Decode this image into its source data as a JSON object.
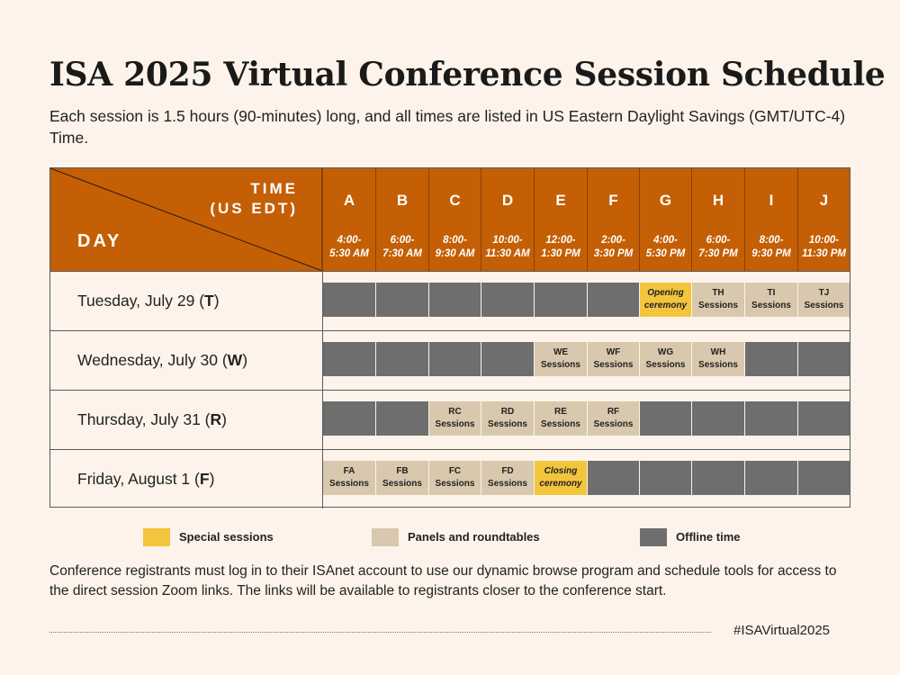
{
  "title": "ISA 2025 Virtual Conference Session Schedule",
  "subtitle": "Each session is 1.5 hours (90-minutes) long, and all times are listed in US Eastern Daylight Savings (GMT/UTC-4) Time.",
  "header": {
    "time_label_1": "TIME",
    "time_label_2": "(US EDT)",
    "day_label": "DAY"
  },
  "columns": [
    {
      "letter": "A",
      "time1": "4:00-",
      "time2": "5:30 AM"
    },
    {
      "letter": "B",
      "time1": "6:00-",
      "time2": "7:30 AM"
    },
    {
      "letter": "C",
      "time1": "8:00-",
      "time2": "9:30 AM"
    },
    {
      "letter": "D",
      "time1": "10:00-",
      "time2": "11:30 AM"
    },
    {
      "letter": "E",
      "time1": "12:00-",
      "time2": "1:30 PM"
    },
    {
      "letter": "F",
      "time1": "2:00-",
      "time2": "3:30 PM"
    },
    {
      "letter": "G",
      "time1": "4:00-",
      "time2": "5:30 PM"
    },
    {
      "letter": "H",
      "time1": "6:00-",
      "time2": "7:30 PM"
    },
    {
      "letter": "I",
      "time1": "8:00-",
      "time2": "9:30 PM"
    },
    {
      "letter": "J",
      "time1": "10:00-",
      "time2": "11:30 PM"
    }
  ],
  "rows": [
    {
      "day": "Tuesday, July 29 (",
      "code": "T",
      "close": ")",
      "cells": [
        {
          "type": "off",
          "l1": "",
          "l2": ""
        },
        {
          "type": "off",
          "l1": "",
          "l2": ""
        },
        {
          "type": "off",
          "l1": "",
          "l2": ""
        },
        {
          "type": "off",
          "l1": "",
          "l2": ""
        },
        {
          "type": "off",
          "l1": "",
          "l2": ""
        },
        {
          "type": "off",
          "l1": "",
          "l2": ""
        },
        {
          "type": "special",
          "l1": "Opening",
          "l2": "ceremony"
        },
        {
          "type": "panel",
          "l1": "TH",
          "l2": "Sessions"
        },
        {
          "type": "panel",
          "l1": "TI",
          "l2": "Sessions"
        },
        {
          "type": "panel",
          "l1": "TJ",
          "l2": "Sessions"
        }
      ]
    },
    {
      "day": "Wednesday, July 30 (",
      "code": "W",
      "close": ")",
      "cells": [
        {
          "type": "off",
          "l1": "",
          "l2": ""
        },
        {
          "type": "off",
          "l1": "",
          "l2": ""
        },
        {
          "type": "off",
          "l1": "",
          "l2": ""
        },
        {
          "type": "off",
          "l1": "",
          "l2": ""
        },
        {
          "type": "panel",
          "l1": "WE",
          "l2": "Sessions"
        },
        {
          "type": "panel",
          "l1": "WF",
          "l2": "Sessions"
        },
        {
          "type": "panel",
          "l1": "WG",
          "l2": "Sessions"
        },
        {
          "type": "panel",
          "l1": "WH",
          "l2": "Sessions"
        },
        {
          "type": "off",
          "l1": "",
          "l2": ""
        },
        {
          "type": "off",
          "l1": "",
          "l2": ""
        }
      ]
    },
    {
      "day": "Thursday, July 31 (",
      "code": "R",
      "close": ")",
      "cells": [
        {
          "type": "off",
          "l1": "",
          "l2": ""
        },
        {
          "type": "off",
          "l1": "",
          "l2": ""
        },
        {
          "type": "panel",
          "l1": "RC",
          "l2": "Sessions"
        },
        {
          "type": "panel",
          "l1": "RD",
          "l2": "Sessions"
        },
        {
          "type": "panel",
          "l1": "RE",
          "l2": "Sessions"
        },
        {
          "type": "panel",
          "l1": "RF",
          "l2": "Sessions"
        },
        {
          "type": "off",
          "l1": "",
          "l2": ""
        },
        {
          "type": "off",
          "l1": "",
          "l2": ""
        },
        {
          "type": "off",
          "l1": "",
          "l2": ""
        },
        {
          "type": "off",
          "l1": "",
          "l2": ""
        }
      ]
    },
    {
      "day": "Friday, August 1 (",
      "code": "F",
      "close": ")",
      "cells": [
        {
          "type": "panel",
          "l1": "FA",
          "l2": "Sessions"
        },
        {
          "type": "panel",
          "l1": "FB",
          "l2": "Sessions"
        },
        {
          "type": "panel",
          "l1": "FC",
          "l2": "Sessions"
        },
        {
          "type": "panel",
          "l1": "FD",
          "l2": "Sessions"
        },
        {
          "type": "special",
          "l1": "Closing",
          "l2": "ceremony"
        },
        {
          "type": "off",
          "l1": "",
          "l2": ""
        },
        {
          "type": "off",
          "l1": "",
          "l2": ""
        },
        {
          "type": "off",
          "l1": "",
          "l2": ""
        },
        {
          "type": "off",
          "l1": "",
          "l2": ""
        },
        {
          "type": "off",
          "l1": "",
          "l2": ""
        }
      ]
    }
  ],
  "legend": [
    {
      "label": "Special sessions",
      "color": "#f2c53d"
    },
    {
      "label": "Panels and roundtables",
      "color": "#d8c8ad"
    },
    {
      "label": "Offline time",
      "color": "#6e6e6e"
    }
  ],
  "footer": "Conference registrants must log in to their ISAnet account to use our dynamic browse program and schedule tools for access to the direct session Zoom links. The links will be available to registrants closer to the conference start.",
  "hashtag": "#ISAVirtual2025",
  "colors": {
    "header": "#c45f06",
    "background": "#fdf3ea"
  }
}
